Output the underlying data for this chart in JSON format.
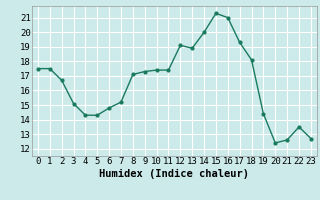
{
  "x": [
    0,
    1,
    2,
    3,
    4,
    5,
    6,
    7,
    8,
    9,
    10,
    11,
    12,
    13,
    14,
    15,
    16,
    17,
    18,
    19,
    20,
    21,
    22,
    23
  ],
  "y": [
    17.5,
    17.5,
    16.7,
    15.1,
    14.3,
    14.3,
    14.8,
    15.2,
    17.1,
    17.3,
    17.4,
    17.4,
    19.1,
    18.9,
    20.0,
    21.3,
    21.0,
    19.3,
    18.1,
    14.4,
    12.4,
    12.6,
    13.5,
    12.7
  ],
  "line_color": "#1a7a5e",
  "marker": "o",
  "marker_size": 2.0,
  "line_width": 1.0,
  "bg_color": "#cceaea",
  "grid_color": "#ffffff",
  "xlabel": "Humidex (Indice chaleur)",
  "xlabel_fontsize": 7.5,
  "tick_fontsize": 6.5,
  "ylim": [
    11.5,
    21.8
  ],
  "xlim": [
    -0.5,
    23.5
  ],
  "yticks": [
    12,
    13,
    14,
    15,
    16,
    17,
    18,
    19,
    20,
    21
  ],
  "xticks": [
    0,
    1,
    2,
    3,
    4,
    5,
    6,
    7,
    8,
    9,
    10,
    11,
    12,
    13,
    14,
    15,
    16,
    17,
    18,
    19,
    20,
    21,
    22,
    23
  ]
}
